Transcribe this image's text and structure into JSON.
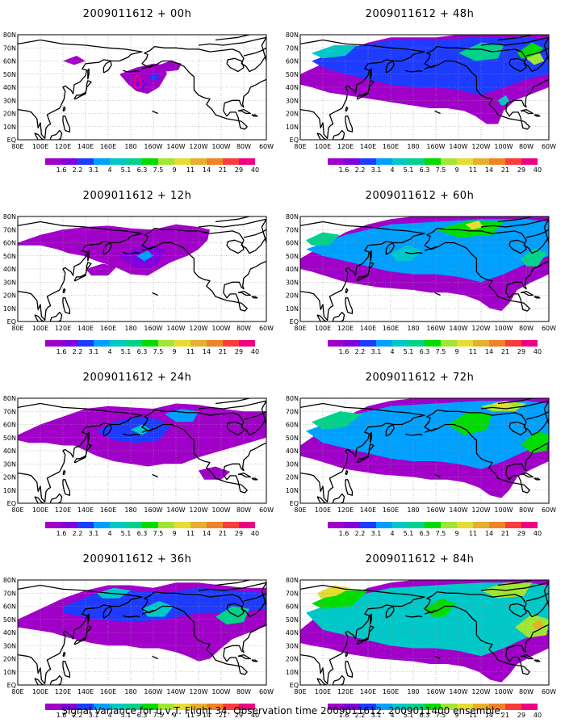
{
  "caption": "Signal Variance for u,v,T. Flight 34. Observation time 2009011612. 2009011400 ensemble.",
  "panels": [
    {
      "title": "2009011612 + 00h",
      "lead": "00h",
      "col": 0,
      "row": 0
    },
    {
      "title": "2009011612 + 12h",
      "lead": "12h",
      "col": 0,
      "row": 1
    },
    {
      "title": "2009011612 + 24h",
      "lead": "24h",
      "col": 0,
      "row": 2
    },
    {
      "title": "2009011612 + 36h",
      "lead": "36h",
      "col": 0,
      "row": 3
    },
    {
      "title": "2009011612 + 48h",
      "lead": "48h",
      "col": 1,
      "row": 0
    },
    {
      "title": "2009011612 + 60h",
      "lead": "60h",
      "col": 1,
      "row": 1
    },
    {
      "title": "2009011612 + 72h",
      "lead": "72h",
      "col": 1,
      "row": 2
    },
    {
      "title": "2009011612 + 84h",
      "lead": "84h",
      "col": 1,
      "row": 3
    }
  ],
  "x_ticks": [
    "80E",
    "100E",
    "120E",
    "140E",
    "160E",
    "180",
    "160W",
    "140W",
    "120W",
    "100W",
    "80W",
    "60W"
  ],
  "y_ticks": [
    "EQ",
    "10N",
    "20N",
    "30N",
    "40N",
    "50N",
    "60N",
    "70N",
    "80N"
  ],
  "colorbar": {
    "labels": [
      "1.6",
      "2.2",
      "3.1",
      "4",
      "5.1",
      "6.3",
      "7.5",
      "9",
      "11",
      "14",
      "21",
      "29",
      "40"
    ],
    "colors": [
      "#a000c8",
      "#8200dc",
      "#1e3cff",
      "#00a0ff",
      "#00c8c8",
      "#00d28c",
      "#00dc00",
      "#a0e632",
      "#e6dc32",
      "#e6af2d",
      "#f08228",
      "#fa3c3c",
      "#f00082"
    ]
  }
}
